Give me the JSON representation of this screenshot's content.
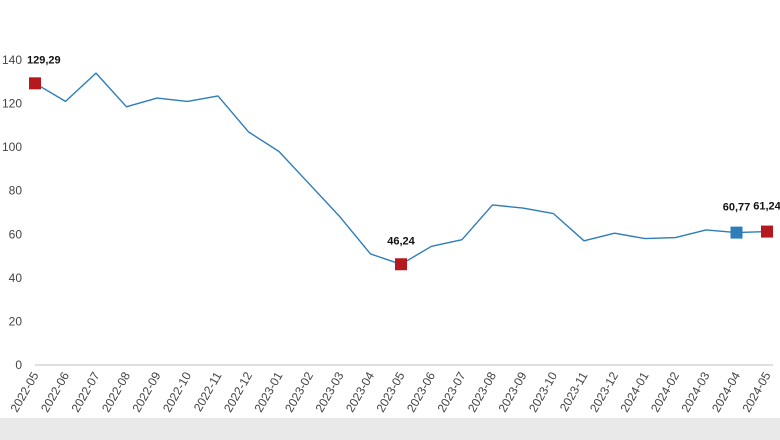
{
  "chart_data": {
    "type": "line",
    "title": "",
    "xlabel": "",
    "ylabel": "",
    "ylim": [
      0,
      140
    ],
    "yticks": [
      0,
      20,
      40,
      60,
      80,
      100,
      120,
      140
    ],
    "grid": false,
    "legend": "none",
    "categories": [
      "2022-05",
      "2022-06",
      "2022-07",
      "2022-08",
      "2022-09",
      "2022-10",
      "2022-11",
      "2022-12",
      "2023-01",
      "2023-02",
      "2023-03",
      "2023-04",
      "2023-05",
      "2023-06",
      "2023-07",
      "2023-08",
      "2023-09",
      "2023-10",
      "2023-11",
      "2023-12",
      "2024-01",
      "2024-02",
      "2024-03",
      "2024-04",
      "2024-05"
    ],
    "series": [
      {
        "values": [
          129.29,
          121,
          134,
          118.5,
          122.5,
          121,
          123.5,
          107,
          98,
          83,
          68,
          51,
          46.24,
          54.5,
          57.5,
          73.5,
          72,
          69.5,
          57,
          60.5,
          58,
          58.5,
          62,
          60.77,
          61.24
        ],
        "color": "#2e7db8"
      }
    ],
    "annotations": [
      {
        "index": 0,
        "label": "129,29",
        "marker_color": "#b5191f"
      },
      {
        "index": 12,
        "label": "46,24",
        "marker_color": "#b5191f"
      },
      {
        "index": 23,
        "label": "60,77",
        "marker_color": "#2e7db8"
      },
      {
        "index": 24,
        "label": "61,24",
        "marker_color": "#b5191f"
      }
    ]
  }
}
